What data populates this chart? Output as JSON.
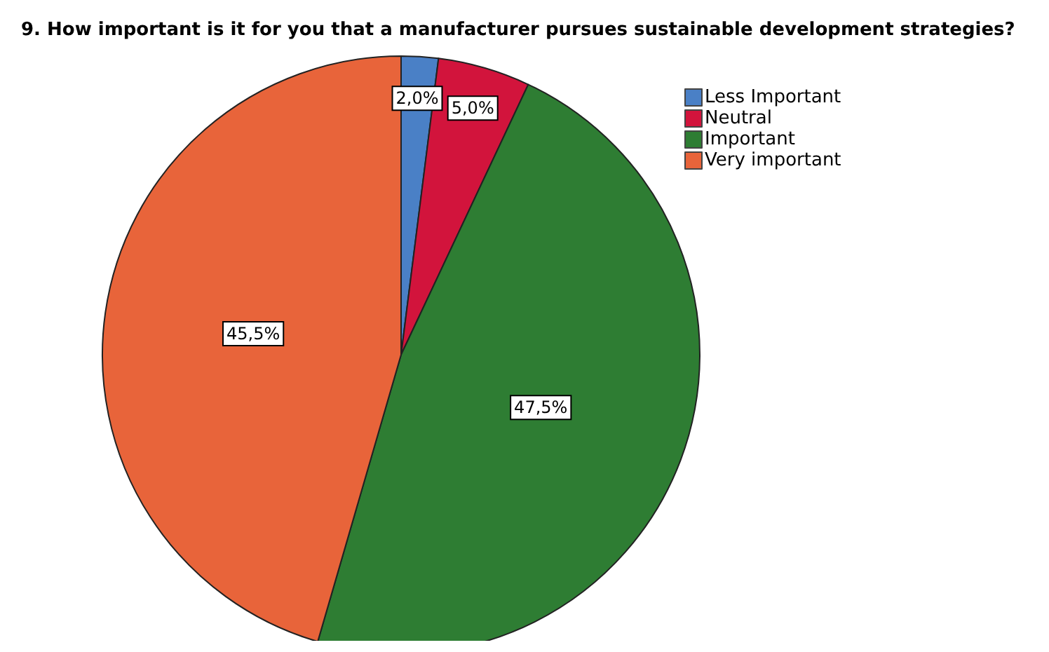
{
  "chart_data": {
    "type": "pie",
    "title": "9. How important is it for you that a manufacturer pursues sustainable development strategies?",
    "categories": [
      "Less Important",
      "Neutral",
      "Important",
      "Very important"
    ],
    "values": [
      2.0,
      5.0,
      47.5,
      45.5
    ],
    "colors": [
      "#4a80c6",
      "#d2143c",
      "#2e7d33",
      "#e8643a"
    ],
    "value_labels": [
      "2,0%",
      "5,0%",
      "47,5%",
      "45,5%"
    ],
    "legend": "top right"
  }
}
